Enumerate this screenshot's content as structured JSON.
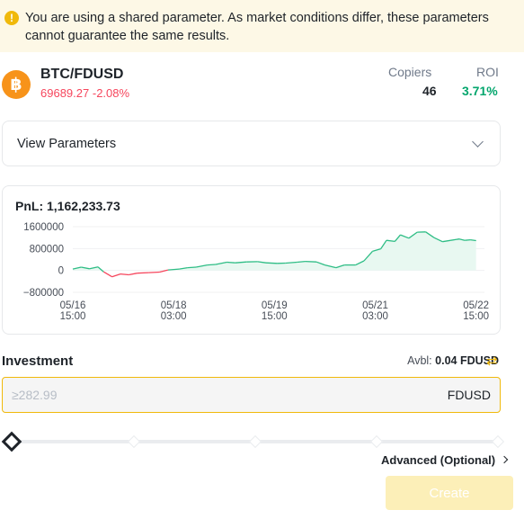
{
  "banner": {
    "icon": "exclamation-icon",
    "message": "You are using a shared parameter. As market conditions differ, these parameters cannot guarantee the same results."
  },
  "pair": {
    "icon": "bitcoin-icon",
    "icon_glyph": "฿",
    "symbol": "BTC/FDUSD",
    "price": "69689.27",
    "change": "-2.08%",
    "copiers_label": "Copiers",
    "copiers_value": "46",
    "roi_label": "ROI",
    "roi_value": "3.71%"
  },
  "params": {
    "label": "View Parameters",
    "icon": "chevron-down-icon"
  },
  "chart_data": {
    "type": "line",
    "title": "PnL: 1,162,233.73",
    "y_ticks": [
      "1600000",
      "800000",
      "0",
      "−800000"
    ],
    "ylim": [
      -800000,
      1600000
    ],
    "x_ticks": [
      {
        "date": "05/16",
        "time": "15:00",
        "t": 0
      },
      {
        "date": "05/18",
        "time": "03:00",
        "t": 36
      },
      {
        "date": "05/19",
        "time": "15:00",
        "t": 72
      },
      {
        "date": "05/21",
        "time": "03:00",
        "t": 108
      },
      {
        "date": "05/22",
        "time": "15:00",
        "t": 144
      }
    ],
    "t_range": [
      0,
      147
    ],
    "series": [
      {
        "points": [
          [
            0,
            50000
          ],
          [
            3,
            120000
          ],
          [
            6,
            60000
          ],
          [
            9,
            130000
          ],
          [
            11,
            -50000
          ],
          [
            14,
            -230000
          ],
          [
            17,
            -130000
          ],
          [
            20,
            -160000
          ],
          [
            23,
            -100000
          ],
          [
            27,
            -80000
          ],
          [
            31,
            -60000
          ],
          [
            34,
            20000
          ],
          [
            38,
            50000
          ],
          [
            41,
            100000
          ],
          [
            44,
            120000
          ],
          [
            48,
            200000
          ],
          [
            51,
            220000
          ],
          [
            55,
            300000
          ],
          [
            58,
            280000
          ],
          [
            62,
            310000
          ],
          [
            66,
            320000
          ],
          [
            69,
            280000
          ],
          [
            73,
            260000
          ],
          [
            76,
            270000
          ],
          [
            80,
            300000
          ],
          [
            83,
            330000
          ],
          [
            87,
            310000
          ],
          [
            90,
            200000
          ],
          [
            94,
            100000
          ],
          [
            97,
            200000
          ],
          [
            101,
            200000
          ],
          [
            104,
            350000
          ],
          [
            107,
            700000
          ],
          [
            110,
            790000
          ],
          [
            112,
            1100000
          ],
          [
            115,
            1060000
          ],
          [
            117,
            1300000
          ],
          [
            120,
            1180000
          ],
          [
            123,
            1400000
          ],
          [
            126,
            1410000
          ],
          [
            129,
            1200000
          ],
          [
            132,
            1050000
          ],
          [
            135,
            1100000
          ],
          [
            138,
            1150000
          ],
          [
            140,
            1100000
          ],
          [
            142,
            1120000
          ],
          [
            144,
            1090000
          ]
        ]
      }
    ],
    "colors": {
      "positive": "#2ebd85",
      "negative": "#f6465d",
      "fill": "#e8f8f1"
    },
    "grid": true
  },
  "investment": {
    "label": "Investment",
    "avbl_label": "Avbl:",
    "avbl_value": "0.04 FDUSD",
    "swap_icon": "swap-icon",
    "placeholder": "≥282.99",
    "unit": "FDUSD"
  },
  "slider": {
    "value_fraction": 0
  },
  "advanced": {
    "label": "Advanced (Optional)"
  },
  "create_label": "Create"
}
